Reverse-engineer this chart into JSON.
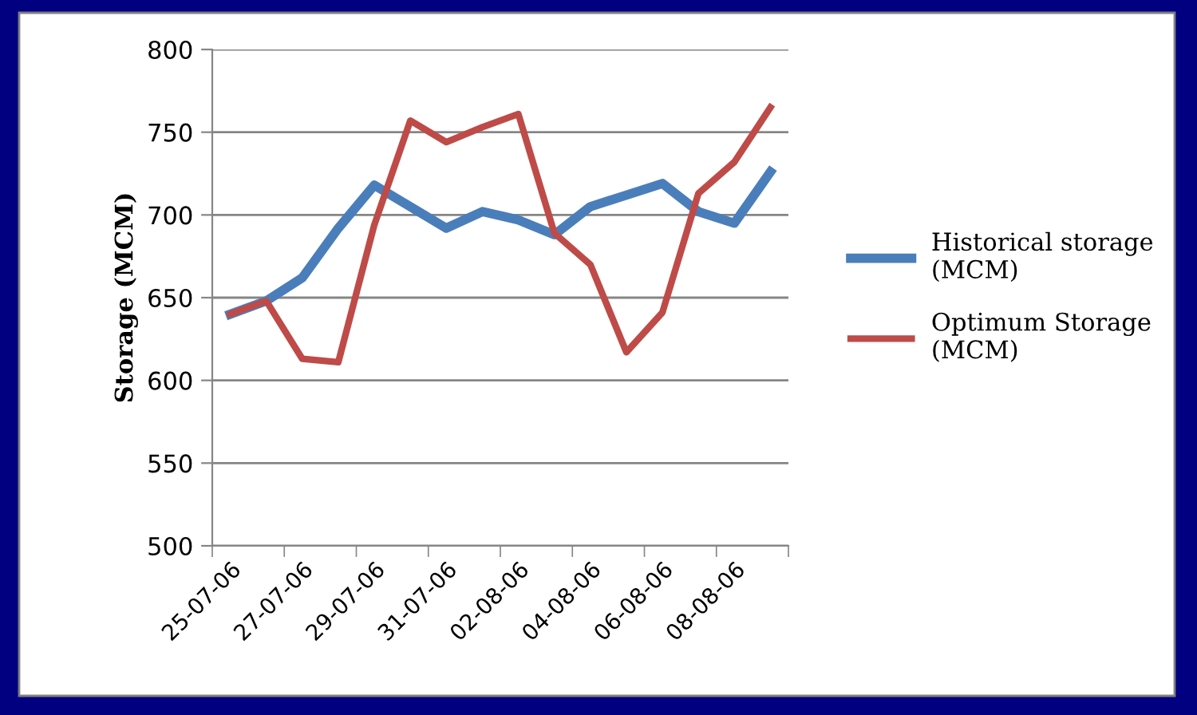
{
  "chart_data": {
    "type": "line",
    "ylabel": "Storage (MCM)",
    "categories": [
      "25-07-06",
      null,
      "27-07-06",
      null,
      "29-07-06",
      null,
      "31-07-06",
      null,
      "02-08-06",
      null,
      "04-08-06",
      null,
      "06-08-06",
      null,
      "08-08-06",
      null
    ],
    "series": [
      {
        "name": "Historical storage (MCM)",
        "color": "#4a7ebb",
        "values": [
          640,
          648,
          662,
          692,
          718,
          705,
          692,
          702,
          697,
          688,
          705,
          712,
          719,
          702,
          695,
          726
        ]
      },
      {
        "name": "Optimum Storage (MCM)",
        "color": "#be4b48",
        "values": [
          640,
          648,
          613,
          611,
          694,
          757,
          744,
          753,
          761,
          689,
          670,
          617,
          641,
          713,
          732,
          765
        ]
      }
    ],
    "ylim": [
      500,
      800
    ],
    "yticks": [
      500,
      550,
      600,
      650,
      700,
      750,
      800
    ],
    "grid": "y",
    "legend": "right",
    "marker": "none",
    "line_style": "solid"
  }
}
